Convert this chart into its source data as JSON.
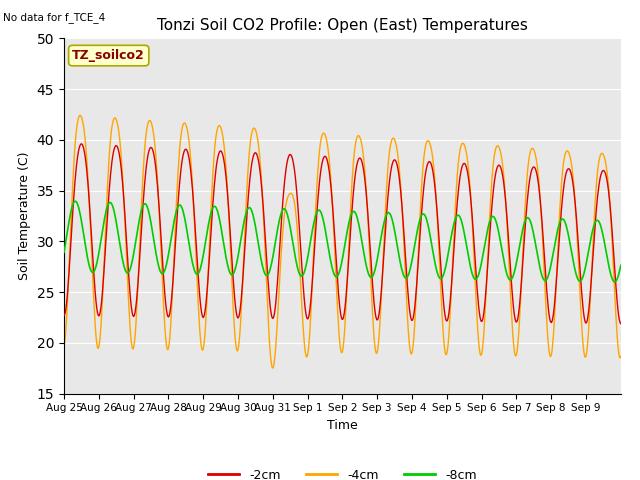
{
  "title": "Tonzi Soil CO2 Profile: Open (East) Temperatures",
  "no_data_label": "No data for f_TCE_4",
  "box_label": "TZ_soilco2",
  "xlabel": "Time",
  "ylabel": "Soil Temperature (C)",
  "ylim": [
    15,
    50
  ],
  "yticks": [
    15,
    20,
    25,
    30,
    35,
    40,
    45,
    50
  ],
  "background_color": "#e8e8e8",
  "fig_background": "#ffffff",
  "line_colors": {
    "m2cm": "#dd0000",
    "m4cm": "#ffa500",
    "m8cm": "#00cc00"
  },
  "line_labels": [
    "-2cm",
    "-4cm",
    "-8cm"
  ],
  "date_labels": [
    "Aug 25",
    "Aug 26",
    "Aug 27",
    "Aug 28",
    "Aug 29",
    "Aug 30",
    "Aug 31",
    "Sep 1",
    "Sep 2",
    "Sep 3",
    "Sep 4",
    "Sep 5",
    "Sep 6",
    "Sep 7",
    "Sep 8",
    "Sep 9"
  ],
  "n_days": 16,
  "samples_per_day": 48
}
